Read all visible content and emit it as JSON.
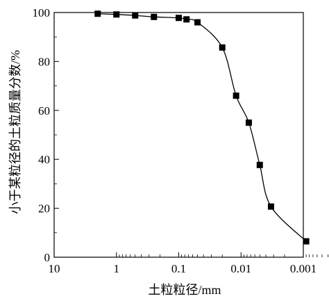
{
  "chart_data": {
    "type": "scatter",
    "xlabel": "土粒粒径/mm",
    "ylabel": "小于某粒径的土粒质量分数/%",
    "x_scale": "log",
    "x_reversed": true,
    "xlim": [
      10,
      0.001
    ],
    "ylim": [
      0,
      100
    ],
    "grid": false,
    "x_ticks": [
      {
        "value": 10,
        "label": "10"
      },
      {
        "value": 1,
        "label": "1"
      },
      {
        "value": 0.1,
        "label": "0.1"
      },
      {
        "value": 0.01,
        "label": "0.01"
      },
      {
        "value": 0.001,
        "label": "0.001"
      }
    ],
    "y_ticks": [
      {
        "value": 0,
        "label": "0"
      },
      {
        "value": 20,
        "label": "20"
      },
      {
        "value": 40,
        "label": "40"
      },
      {
        "value": 60,
        "label": "60"
      },
      {
        "value": 80,
        "label": "80"
      },
      {
        "value": 100,
        "label": "100"
      }
    ],
    "series": [
      {
        "marker": "square",
        "color": "#000000",
        "fit_line": true,
        "x": [
          2.0,
          1.0,
          0.5,
          0.25,
          0.1,
          0.075,
          0.05,
          0.02,
          0.012,
          0.0075,
          0.005,
          0.0033,
          0.0009
        ],
        "y": [
          99.5,
          99.2,
          98.8,
          98.2,
          97.8,
          97.2,
          96.0,
          85.7,
          66.0,
          55.0,
          37.7,
          20.7,
          6.5
        ]
      }
    ]
  }
}
